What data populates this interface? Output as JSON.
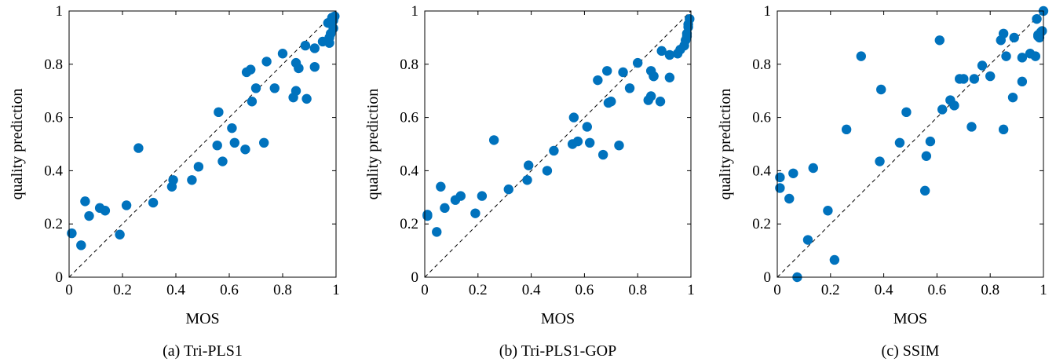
{
  "chart_data": [
    {
      "type": "scatter",
      "caption": "(a) Tri-PLS1",
      "xlabel": "MOS",
      "ylabel": "quality prediction",
      "xlim": [
        0,
        1
      ],
      "ylim": [
        0,
        1
      ],
      "xticks": [
        "0",
        "0.2",
        "0.4",
        "0.6",
        "0.8",
        "1"
      ],
      "yticks": [
        "0",
        "0.2",
        "0.4",
        "0.6",
        "0.8",
        "1"
      ],
      "reference_line": "y = x (dashed)",
      "marker_color": "#0072BD",
      "grid": false,
      "x": [
        0.01,
        0.045,
        0.06,
        0.075,
        0.115,
        0.135,
        0.19,
        0.215,
        0.26,
        0.315,
        0.385,
        0.39,
        0.46,
        0.485,
        0.555,
        0.56,
        0.575,
        0.61,
        0.62,
        0.665,
        0.66,
        0.68,
        0.685,
        0.7,
        0.73,
        0.74,
        0.77,
        0.8,
        0.84,
        0.85,
        0.85,
        0.86,
        0.86,
        0.885,
        0.89,
        0.92,
        0.92,
        0.95,
        0.97,
        0.975,
        0.975,
        0.98,
        0.98,
        0.985,
        0.99,
        0.99,
        0.995
      ],
      "y": [
        0.165,
        0.12,
        0.285,
        0.23,
        0.26,
        0.25,
        0.16,
        0.27,
        0.485,
        0.28,
        0.34,
        0.365,
        0.365,
        0.415,
        0.495,
        0.62,
        0.435,
        0.56,
        0.505,
        0.77,
        0.48,
        0.78,
        0.66,
        0.71,
        0.505,
        0.81,
        0.71,
        0.84,
        0.675,
        0.7,
        0.805,
        0.785,
        0.785,
        0.87,
        0.67,
        0.79,
        0.86,
        0.885,
        0.955,
        0.88,
        0.9,
        0.915,
        0.96,
        0.975,
        0.935,
        0.965,
        0.98
      ]
    },
    {
      "type": "scatter",
      "caption": "(b) Tri-PLS1-GOP",
      "xlabel": "MOS",
      "ylabel": "quality prediction",
      "xlim": [
        0,
        1
      ],
      "ylim": [
        0,
        1
      ],
      "xticks": [
        "0",
        "0.2",
        "0.4",
        "0.6",
        "0.8",
        "1"
      ],
      "yticks": [
        "0",
        "0.2",
        "0.4",
        "0.6",
        "0.8",
        "1"
      ],
      "reference_line": "y = x (dashed)",
      "marker_color": "#0072BD",
      "grid": false,
      "x": [
        0.01,
        0.01,
        0.045,
        0.06,
        0.075,
        0.115,
        0.135,
        0.19,
        0.215,
        0.26,
        0.315,
        0.385,
        0.39,
        0.46,
        0.485,
        0.555,
        0.56,
        0.575,
        0.61,
        0.62,
        0.65,
        0.67,
        0.685,
        0.69,
        0.7,
        0.73,
        0.745,
        0.77,
        0.8,
        0.84,
        0.85,
        0.85,
        0.86,
        0.86,
        0.885,
        0.89,
        0.92,
        0.92,
        0.95,
        0.96,
        0.975,
        0.98,
        0.985,
        0.985,
        0.99,
        0.99,
        0.995
      ],
      "y": [
        0.23,
        0.235,
        0.17,
        0.34,
        0.26,
        0.29,
        0.305,
        0.24,
        0.305,
        0.515,
        0.33,
        0.365,
        0.42,
        0.4,
        0.475,
        0.5,
        0.6,
        0.51,
        0.565,
        0.505,
        0.74,
        0.46,
        0.775,
        0.655,
        0.66,
        0.495,
        0.77,
        0.71,
        0.805,
        0.665,
        0.68,
        0.775,
        0.755,
        0.755,
        0.66,
        0.85,
        0.75,
        0.835,
        0.84,
        0.855,
        0.87,
        0.89,
        0.905,
        0.915,
        0.94,
        0.95,
        0.97
      ]
    },
    {
      "type": "scatter",
      "caption": "(c) SSIM",
      "xlabel": "MOS",
      "ylabel": "quality prediction",
      "xlim": [
        0,
        1
      ],
      "ylim": [
        0,
        1
      ],
      "xticks": [
        "0",
        "0.2",
        "0.4",
        "0.6",
        "0.8",
        "1"
      ],
      "yticks": [
        "0",
        "0.2",
        "0.4",
        "0.6",
        "0.8",
        "1"
      ],
      "reference_line": "y = x (dashed)",
      "marker_color": "#0072BD",
      "grid": false,
      "x": [
        0.01,
        0.01,
        0.045,
        0.06,
        0.075,
        0.115,
        0.135,
        0.19,
        0.215,
        0.26,
        0.315,
        0.385,
        0.39,
        0.46,
        0.485,
        0.555,
        0.56,
        0.575,
        0.61,
        0.62,
        0.65,
        0.665,
        0.685,
        0.7,
        0.73,
        0.74,
        0.77,
        0.8,
        0.84,
        0.85,
        0.85,
        0.86,
        0.885,
        0.89,
        0.92,
        0.92,
        0.95,
        0.97,
        0.975,
        0.98,
        0.98,
        0.985,
        0.99,
        0.995,
        1.0
      ],
      "y": [
        0.335,
        0.375,
        0.295,
        0.39,
        0.0,
        0.14,
        0.41,
        0.25,
        0.065,
        0.555,
        0.83,
        0.435,
        0.705,
        0.505,
        0.62,
        0.325,
        0.455,
        0.51,
        0.89,
        0.63,
        0.665,
        0.645,
        0.745,
        0.745,
        0.565,
        0.745,
        0.795,
        0.755,
        0.89,
        0.555,
        0.915,
        0.83,
        0.675,
        0.9,
        0.825,
        0.735,
        0.84,
        0.83,
        0.97,
        0.91,
        0.905,
        0.9,
        0.92,
        0.925,
        1.0
      ]
    }
  ]
}
